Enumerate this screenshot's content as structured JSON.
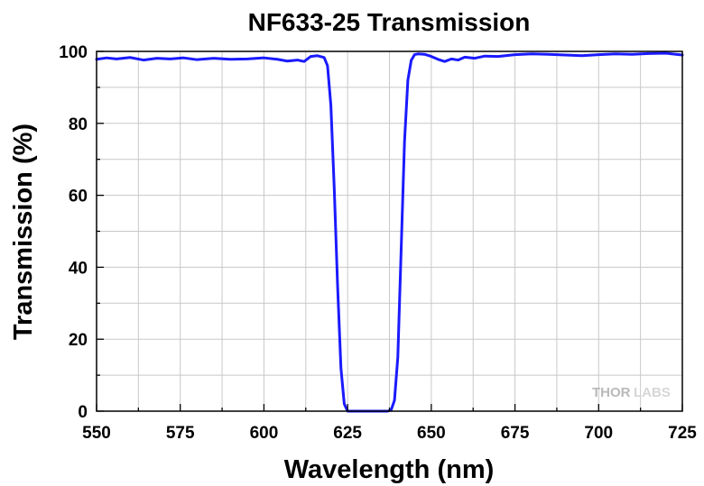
{
  "chart_data": {
    "type": "line",
    "title": "NF633-25 Transmission",
    "xlabel": "Wavelength (nm)",
    "ylabel": "Transmission (%)",
    "xlim": [
      550,
      725
    ],
    "ylim": [
      0,
      100
    ],
    "x_ticks": [
      "550",
      "575",
      "600",
      "625",
      "650",
      "675",
      "700",
      "725"
    ],
    "y_ticks": [
      "0",
      "20",
      "40",
      "60",
      "80",
      "100"
    ],
    "grid": true,
    "legend": "none",
    "colors": {
      "series": "#1a1aff",
      "grid": "#c8c8c8",
      "frame": "#000000"
    },
    "watermark": {
      "part1": "THOR",
      "part2": "LABS"
    },
    "series": [
      {
        "x": [
          550,
          553,
          556,
          560,
          564,
          568,
          572,
          576,
          580,
          585,
          590,
          595,
          600,
          604,
          607,
          610,
          612,
          614,
          616,
          618,
          619,
          620,
          621,
          622,
          623,
          624,
          625,
          626,
          628,
          630,
          632,
          634,
          636,
          637,
          638,
          639,
          640,
          641,
          642,
          643,
          644,
          645,
          646,
          648,
          650,
          652,
          654,
          656,
          658,
          660,
          663,
          666,
          670,
          675,
          680,
          685,
          690,
          695,
          700,
          705,
          710,
          715,
          720,
          725
        ],
        "y": [
          97.8,
          98.2,
          97.9,
          98.3,
          97.6,
          98.1,
          97.9,
          98.2,
          97.7,
          98.1,
          97.8,
          97.9,
          98.2,
          97.8,
          97.3,
          97.6,
          97.2,
          98.6,
          98.8,
          98.3,
          96,
          85,
          62,
          35,
          12,
          2,
          0,
          0,
          0,
          0,
          0,
          0,
          0,
          0,
          0.3,
          3,
          15,
          45,
          75,
          92,
          97.5,
          99.1,
          99.3,
          99.2,
          98.6,
          97.8,
          97.2,
          97.9,
          97.6,
          98.4,
          98.1,
          98.7,
          98.6,
          99.1,
          99.3,
          99.2,
          99.0,
          98.8,
          99.1,
          99.3,
          99.2,
          99.4,
          99.5,
          99.0
        ]
      }
    ]
  }
}
